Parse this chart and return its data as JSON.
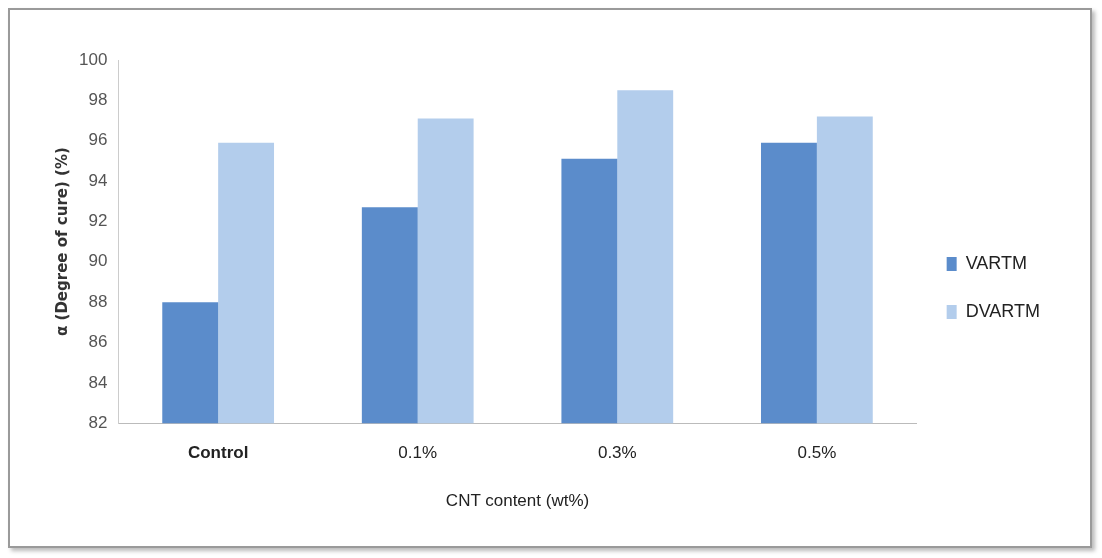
{
  "chart_data": {
    "type": "bar",
    "xlabel": "CNT content (wt%)",
    "ylabel": "α (Degree of cure) (%)",
    "categories": [
      "Control",
      "0.1%",
      "0.3%",
      "0.5%"
    ],
    "series": [
      {
        "name": "VARTM",
        "color": "#5b8ccb",
        "values": [
          88.0,
          92.7,
          95.1,
          95.9
        ]
      },
      {
        "name": "DVARTM",
        "color": "#b3cdec",
        "values": [
          95.9,
          97.1,
          98.5,
          97.2
        ]
      }
    ],
    "ylim": [
      82,
      100
    ],
    "yticks": [
      82,
      84,
      86,
      88,
      90,
      92,
      94,
      96,
      98,
      100
    ],
    "grid": false,
    "legend": "right"
  }
}
